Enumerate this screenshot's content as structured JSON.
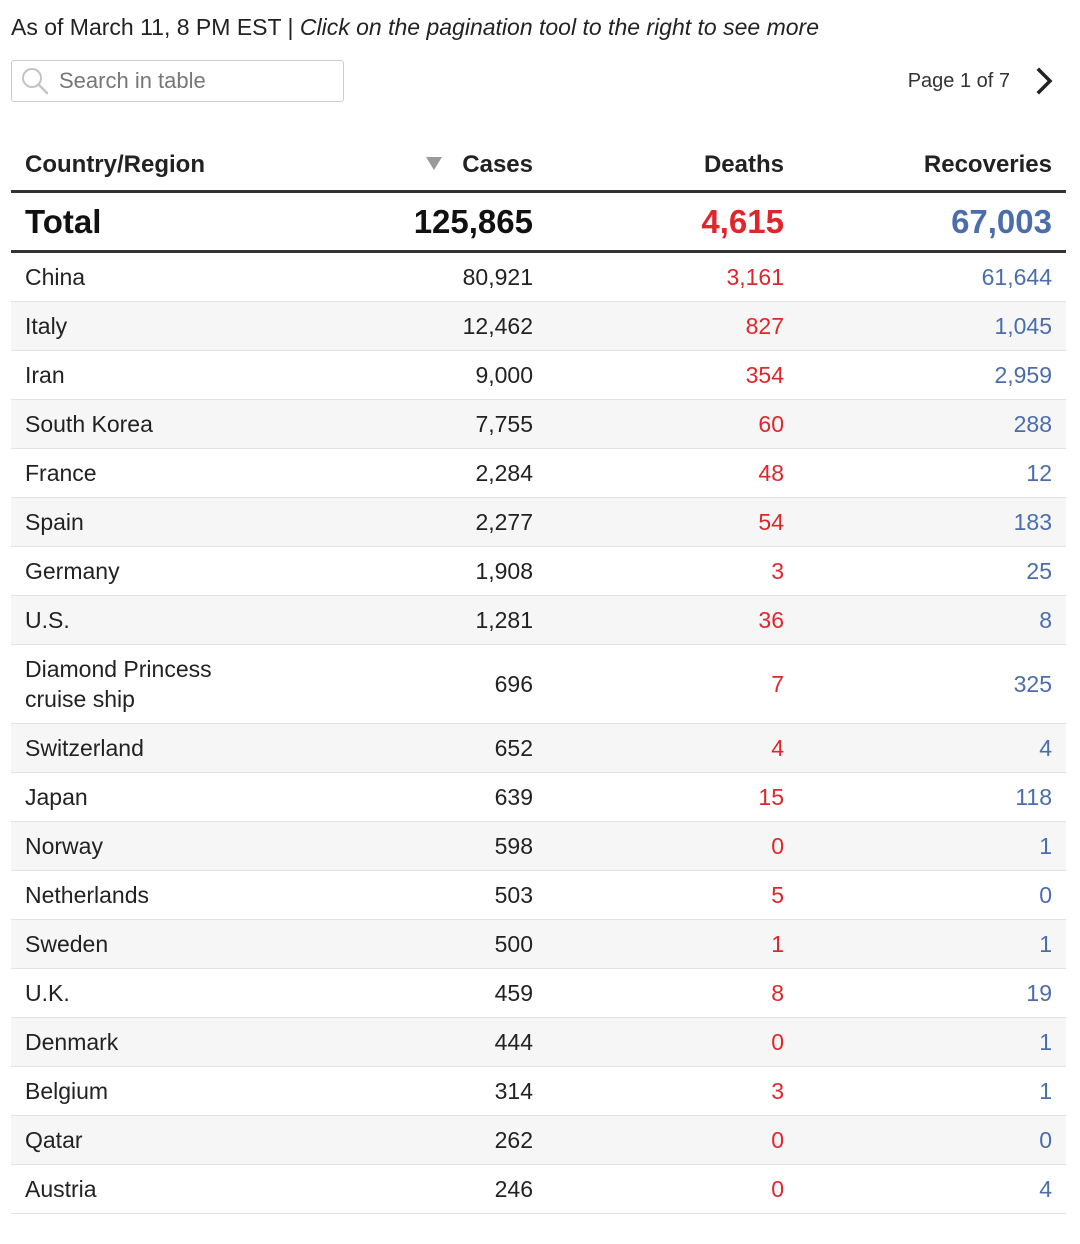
{
  "header": {
    "as_of": "As of March 11, 8 PM EST | ",
    "hint": "Click on the pagination tool to the right to see more"
  },
  "search": {
    "placeholder": "Search in table",
    "value": "",
    "icon": "magnifier-icon"
  },
  "pagination": {
    "label": "Page 1 of 7",
    "next_icon": "chevron-right-icon"
  },
  "columns": {
    "country": "Country/Region",
    "cases": "Cases",
    "deaths": "Deaths",
    "recoveries": "Recoveries",
    "sorted_by": "cases",
    "sort_direction": "descending"
  },
  "total": {
    "name": "Total",
    "cases": "125,865",
    "deaths": "4,615",
    "recoveries": "67,003"
  },
  "colors": {
    "deaths": "#e0262b",
    "recoveries": "#4b6dab",
    "stripe": "#f6f6f6"
  },
  "rows": [
    {
      "name": "China",
      "cases": "80,921",
      "deaths": "3,161",
      "recoveries": "61,644"
    },
    {
      "name": "Italy",
      "cases": "12,462",
      "deaths": "827",
      "recoveries": "1,045"
    },
    {
      "name": "Iran",
      "cases": "9,000",
      "deaths": "354",
      "recoveries": "2,959"
    },
    {
      "name": "South Korea",
      "cases": "7,755",
      "deaths": "60",
      "recoveries": "288"
    },
    {
      "name": "France",
      "cases": "2,284",
      "deaths": "48",
      "recoveries": "12"
    },
    {
      "name": "Spain",
      "cases": "2,277",
      "deaths": "54",
      "recoveries": "183"
    },
    {
      "name": "Germany",
      "cases": "1,908",
      "deaths": "3",
      "recoveries": "25"
    },
    {
      "name": "U.S.",
      "cases": "1,281",
      "deaths": "36",
      "recoveries": "8"
    },
    {
      "name": "Diamond Princess cruise ship",
      "cases": "696",
      "deaths": "7",
      "recoveries": "325"
    },
    {
      "name": "Switzerland",
      "cases": "652",
      "deaths": "4",
      "recoveries": "4"
    },
    {
      "name": "Japan",
      "cases": "639",
      "deaths": "15",
      "recoveries": "118"
    },
    {
      "name": "Norway",
      "cases": "598",
      "deaths": "0",
      "recoveries": "1"
    },
    {
      "name": "Netherlands",
      "cases": "503",
      "deaths": "5",
      "recoveries": "0"
    },
    {
      "name": "Sweden",
      "cases": "500",
      "deaths": "1",
      "recoveries": "1"
    },
    {
      "name": "U.K.",
      "cases": "459",
      "deaths": "8",
      "recoveries": "19"
    },
    {
      "name": "Denmark",
      "cases": "444",
      "deaths": "0",
      "recoveries": "1"
    },
    {
      "name": "Belgium",
      "cases": "314",
      "deaths": "3",
      "recoveries": "1"
    },
    {
      "name": "Qatar",
      "cases": "262",
      "deaths": "0",
      "recoveries": "0"
    },
    {
      "name": "Austria",
      "cases": "246",
      "deaths": "0",
      "recoveries": "4"
    }
  ]
}
